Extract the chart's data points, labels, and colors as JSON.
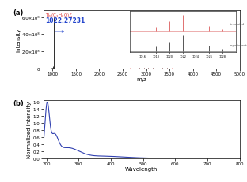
{
  "panel_a": {
    "xlim": [
      800,
      5000
    ],
    "ylim": [
      0,
      680000000.0
    ],
    "yticks": [
      0,
      200000000.0,
      400000000.0,
      600000000.0
    ],
    "ytick_labels": [
      "0",
      "2.0×10⁸",
      "4.0×10⁸",
      "6.0×10⁸"
    ],
    "xlabel": "m/z",
    "ylabel": "Intensity",
    "sim_color": "#e07070",
    "exp_color": "#555555",
    "main_peak_color": "#333333",
    "label_color_red": "#dd3333",
    "label_color_blue": "#2244cc"
  },
  "panel_b": {
    "xlim": [
      190,
      800
    ],
    "ylim": [
      0,
      1.65
    ],
    "yticks": [
      0,
      0.2,
      0.4,
      0.6,
      0.8,
      1.0,
      1.2,
      1.4,
      1.6
    ],
    "xlabel": "Wavelength",
    "ylabel": "Normalized intensity",
    "line_color": "#3040b0"
  }
}
